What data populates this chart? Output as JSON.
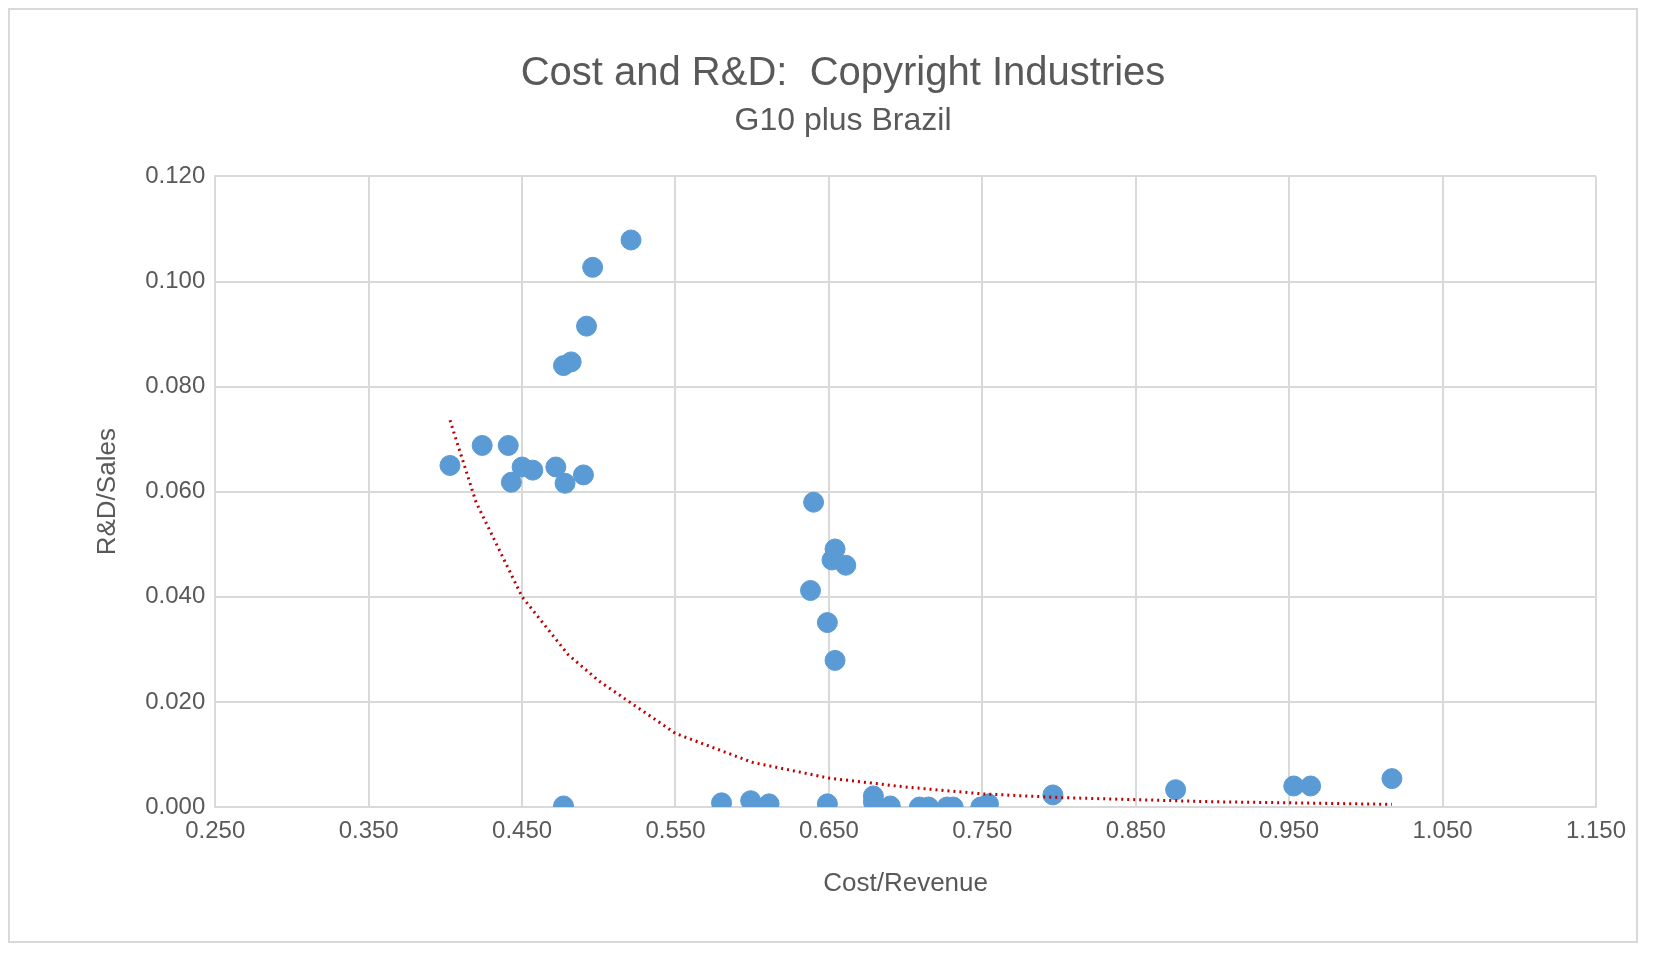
{
  "chart_data": {
    "type": "scatter",
    "title": "Cost and R&D:  Copyright Industries",
    "subtitle": "G10 plus Brazil",
    "xlabel": "Cost/Revenue",
    "ylabel": "R&D/Sales",
    "xlim": [
      0.25,
      1.15
    ],
    "xticks": [
      {
        "value": 0.25,
        "label": "0.250"
      },
      {
        "value": 0.35,
        "label": "0.350"
      },
      {
        "value": 0.45,
        "label": "0.450"
      },
      {
        "value": 0.55,
        "label": "0.550"
      },
      {
        "value": 0.65,
        "label": "0.650"
      },
      {
        "value": 0.75,
        "label": "0.750"
      },
      {
        "value": 0.85,
        "label": "0.850"
      },
      {
        "value": 0.95,
        "label": "0.950"
      },
      {
        "value": 1.05,
        "label": "1.050"
      },
      {
        "value": 1.15,
        "label": "1.150"
      }
    ],
    "ylim": [
      0,
      0.12
    ],
    "yticks": [
      {
        "value": 0,
        "label": "0.000"
      },
      {
        "value": 0.02,
        "label": "0.020"
      },
      {
        "value": 0.04,
        "label": "0.040"
      },
      {
        "value": 0.06,
        "label": "0.060"
      },
      {
        "value": 0.08,
        "label": "0.080"
      },
      {
        "value": 0.1,
        "label": "0.100"
      },
      {
        "value": 0.12,
        "label": "0.120"
      }
    ],
    "grid": true,
    "legend": false,
    "series": [
      {
        "type": "scatter",
        "color": "#5b9bd5",
        "marker": "circle",
        "x": [
          0.403,
          0.424,
          0.441,
          0.443,
          0.45,
          0.457,
          0.472,
          0.478,
          0.49,
          0.477,
          0.482,
          0.492,
          0.496,
          0.521,
          0.477,
          0.64,
          0.654,
          0.652,
          0.661,
          0.638,
          0.649,
          0.654,
          0.58,
          0.599,
          0.611,
          0.649,
          0.679,
          0.679,
          0.69,
          0.709,
          0.715,
          0.727,
          0.731,
          0.749,
          0.754,
          0.796,
          0.876,
          0.953,
          0.964,
          1.017
        ],
        "values": [
          0.065,
          0.0688,
          0.0688,
          0.0618,
          0.0647,
          0.0641,
          0.0647,
          0.0616,
          0.0632,
          0.084,
          0.0847,
          0.0915,
          0.1027,
          0.1079,
          0.0002,
          0.058,
          0.0491,
          0.047,
          0.046,
          0.0412,
          0.0351,
          0.0279,
          0.0008,
          0.0012,
          0.0006,
          0.0006,
          0.0021,
          0.001,
          0.0002,
          0,
          0,
          0,
          0,
          0,
          0.0006,
          0.0023,
          0.0033,
          0.004,
          0.004,
          0.0054
        ]
      },
      {
        "type": "line",
        "color": "#c00000",
        "line_style": "dotted",
        "marker": "none",
        "x": [
          0.403,
          0.42,
          0.45,
          0.48,
          0.5,
          0.55,
          0.6,
          0.65,
          0.7,
          0.75,
          0.8,
          0.85,
          0.9,
          0.95,
          1.017
        ],
        "values": [
          0.0736,
          0.058,
          0.04,
          0.029,
          0.024,
          0.014,
          0.0085,
          0.0055,
          0.0038,
          0.0025,
          0.0018,
          0.0014,
          0.001,
          0.0008,
          0.0005
        ]
      }
    ]
  }
}
